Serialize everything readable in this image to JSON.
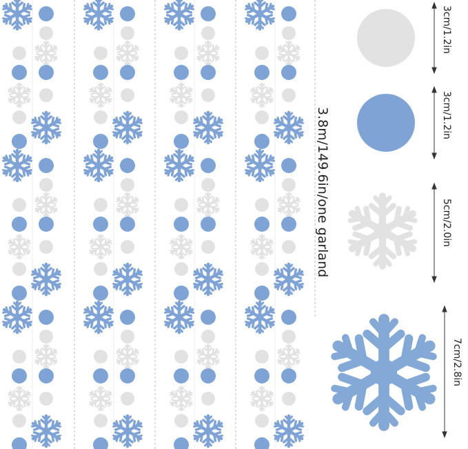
{
  "labels": {
    "garland": "3.8m/149.6in/one garland",
    "sizes": [
      "3cm/1.2in",
      "3cm/1.2in",
      "5cm/2.0in",
      "7cm/2.8in"
    ]
  }
}
